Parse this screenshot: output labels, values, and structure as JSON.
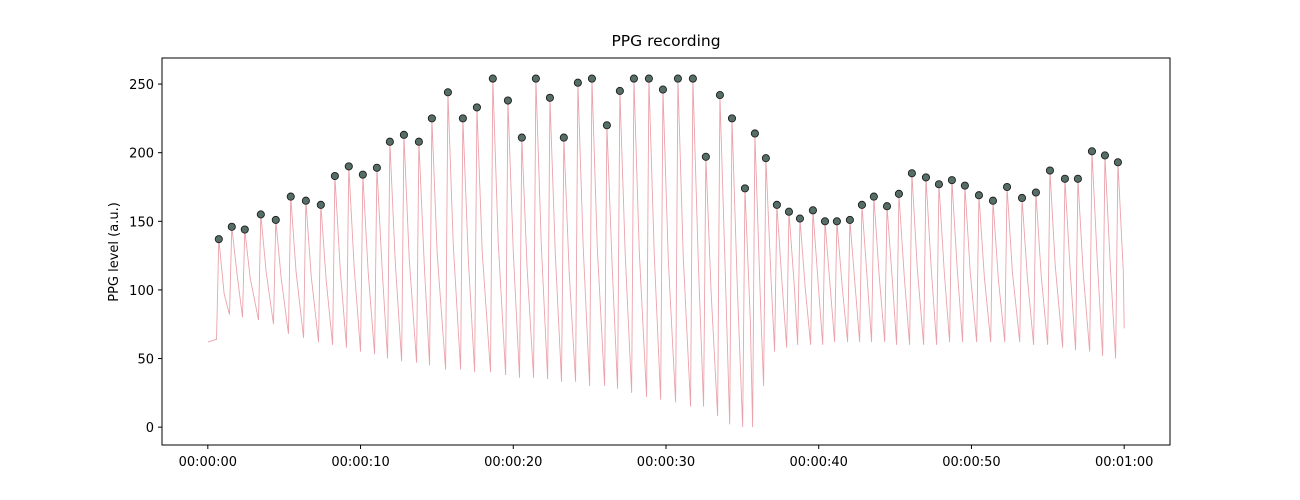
{
  "chart_data": {
    "type": "line",
    "title": "PPG recording",
    "y_label": "PPG level (a.u.)",
    "xlim": [
      -3,
      63
    ],
    "ylim": [
      -13,
      269
    ],
    "xticks": [
      {
        "value": 0,
        "label": "00:00:00"
      },
      {
        "value": 10,
        "label": "00:00:10"
      },
      {
        "value": 20,
        "label": "00:00:20"
      },
      {
        "value": 30,
        "label": "00:00:30"
      },
      {
        "value": 40,
        "label": "00:00:40"
      },
      {
        "value": 50,
        "label": "00:00:50"
      },
      {
        "value": 60,
        "label": "00:01:00"
      }
    ],
    "yticks": [
      0,
      50,
      100,
      150,
      200,
      250
    ],
    "series": [
      {
        "type": "line",
        "color": "#eba3ab",
        "x": [
          0,
          0.57,
          0.72,
          1.07,
          1.42,
          1.57,
          1.92,
          2.27,
          2.42,
          2.77,
          3.32,
          3.47,
          3.82,
          4.3,
          4.45,
          4.8,
          5.28,
          5.43,
          5.78,
          6.27,
          6.42,
          6.77,
          7.25,
          7.4,
          7.75,
          8.17,
          8.32,
          8.67,
          9.08,
          9.23,
          9.58,
          10.0,
          10.15,
          10.5,
          10.92,
          11.07,
          11.42,
          11.77,
          11.92,
          12.27,
          12.69,
          12.84,
          13.19,
          13.67,
          13.82,
          14.17,
          14.52,
          14.67,
          15.02,
          15.57,
          15.72,
          16.07,
          16.55,
          16.7,
          17.05,
          17.47,
          17.62,
          17.97,
          18.51,
          18.66,
          19.01,
          19.5,
          19.65,
          20.0,
          20.41,
          20.56,
          20.91,
          21.33,
          21.48,
          21.83,
          22.25,
          22.4,
          22.75,
          23.16,
          23.31,
          23.66,
          24.08,
          24.23,
          24.58,
          25.0,
          25.15,
          25.5,
          25.98,
          26.13,
          26.48,
          26.83,
          26.98,
          27.33,
          27.75,
          27.9,
          28.25,
          28.73,
          28.88,
          29.23,
          29.65,
          29.8,
          30.15,
          30.63,
          30.78,
          31.13,
          31.61,
          31.76,
          32.11,
          32.46,
          32.61,
          32.96,
          33.38,
          33.53,
          33.88,
          34.17,
          34.32,
          34.67,
          35.02,
          35.17,
          35.52,
          35.67,
          35.82,
          36.17,
          36.39,
          36.54,
          36.89,
          37.11,
          37.26,
          37.61,
          37.9,
          38.05,
          38.4,
          38.62,
          38.77,
          39.12,
          39.47,
          39.62,
          39.97,
          40.26,
          40.41,
          40.76,
          41.04,
          41.19,
          41.54,
          41.89,
          42.04,
          42.39,
          42.68,
          42.83,
          43.18,
          43.46,
          43.61,
          43.96,
          44.32,
          44.47,
          44.82,
          45.1,
          45.25,
          45.6,
          45.95,
          46.1,
          46.45,
          46.87,
          47.02,
          47.37,
          47.72,
          47.87,
          48.22,
          48.57,
          48.72,
          49.07,
          49.42,
          49.57,
          49.92,
          50.34,
          50.49,
          50.84,
          51.26,
          51.41,
          51.76,
          52.18,
          52.33,
          52.68,
          53.16,
          53.31,
          53.66,
          54.07,
          54.22,
          54.57,
          54.99,
          55.14,
          55.49,
          55.97,
          56.12,
          56.47,
          56.82,
          56.97,
          57.32,
          57.74,
          57.89,
          58.24,
          58.59,
          58.74,
          59.09,
          59.44,
          59.59,
          59.94,
          60
        ],
        "values": [
          62,
          64,
          137,
          97,
          82,
          146,
          111,
          80,
          144,
          109,
          78,
          155,
          113,
          75,
          151,
          109,
          68,
          168,
          113,
          65,
          165,
          110,
          62,
          162,
          107,
          60,
          183,
          115,
          58,
          190,
          117,
          55,
          184,
          113,
          53,
          189,
          114,
          50,
          208,
          121,
          48,
          213,
          122,
          47,
          208,
          119,
          45,
          225,
          126,
          42,
          244,
          133,
          42,
          225,
          124,
          40,
          233,
          127,
          40,
          254,
          136,
          38,
          238,
          128,
          36,
          211,
          115,
          36,
          254,
          134,
          35,
          240,
          127,
          33,
          211,
          113,
          33,
          251,
          131,
          30,
          254,
          131,
          30,
          220,
          116,
          28,
          245,
          126,
          25,
          254,
          128,
          22,
          254,
          126,
          20,
          246,
          122,
          18,
          254,
          124,
          15,
          254,
          122,
          15,
          197,
          97,
          8,
          242,
          113,
          2,
          225,
          102,
          0,
          174,
          78,
          0,
          214,
          96,
          30,
          196,
          105,
          55,
          162,
          103,
          58,
          157,
          103,
          60,
          152,
          101,
          60,
          158,
          104,
          60,
          150,
          101,
          62,
          150,
          102,
          62,
          151,
          102,
          62,
          162,
          107,
          62,
          168,
          110,
          62,
          161,
          107,
          60,
          170,
          110,
          60,
          185,
          116,
          60,
          182,
          115,
          60,
          177,
          113,
          62,
          180,
          115,
          62,
          176,
          113,
          62,
          169,
          110,
          62,
          165,
          108,
          62,
          175,
          113,
          62,
          167,
          109,
          60,
          171,
          110,
          60,
          187,
          117,
          58,
          181,
          113,
          56,
          181,
          112,
          55,
          201,
          121,
          52,
          198,
          118,
          50,
          193,
          114,
          72
        ]
      },
      {
        "type": "scatter",
        "color": "#566e68",
        "x": [
          0.72,
          1.57,
          2.42,
          3.47,
          4.45,
          5.43,
          6.42,
          7.4,
          8.32,
          9.23,
          10.15,
          11.07,
          11.92,
          12.84,
          13.82,
          14.67,
          15.72,
          16.7,
          17.62,
          18.66,
          19.65,
          20.56,
          21.48,
          22.4,
          23.31,
          24.23,
          25.15,
          26.13,
          26.98,
          27.9,
          28.88,
          29.8,
          30.78,
          31.76,
          32.61,
          33.53,
          34.32,
          35.17,
          35.82,
          36.54,
          37.26,
          38.05,
          38.77,
          39.62,
          40.41,
          41.19,
          42.04,
          42.83,
          43.61,
          44.47,
          45.25,
          46.1,
          47.02,
          47.87,
          48.72,
          49.57,
          50.49,
          51.41,
          52.33,
          53.31,
          54.22,
          55.14,
          56.12,
          56.97,
          57.89,
          58.74,
          59.59
        ],
        "values": [
          137,
          146,
          144,
          155,
          151,
          168,
          165,
          162,
          183,
          190,
          184,
          189,
          208,
          213,
          208,
          225,
          244,
          225,
          233,
          254,
          238,
          211,
          254,
          240,
          211,
          251,
          254,
          220,
          245,
          254,
          254,
          246,
          254,
          254,
          197,
          242,
          225,
          174,
          214,
          196,
          162,
          157,
          152,
          158,
          150,
          150,
          151,
          162,
          168,
          161,
          170,
          185,
          182,
          177,
          180,
          176,
          169,
          165,
          175,
          167,
          171,
          187,
          181,
          181,
          201,
          198,
          193
        ]
      }
    ]
  }
}
